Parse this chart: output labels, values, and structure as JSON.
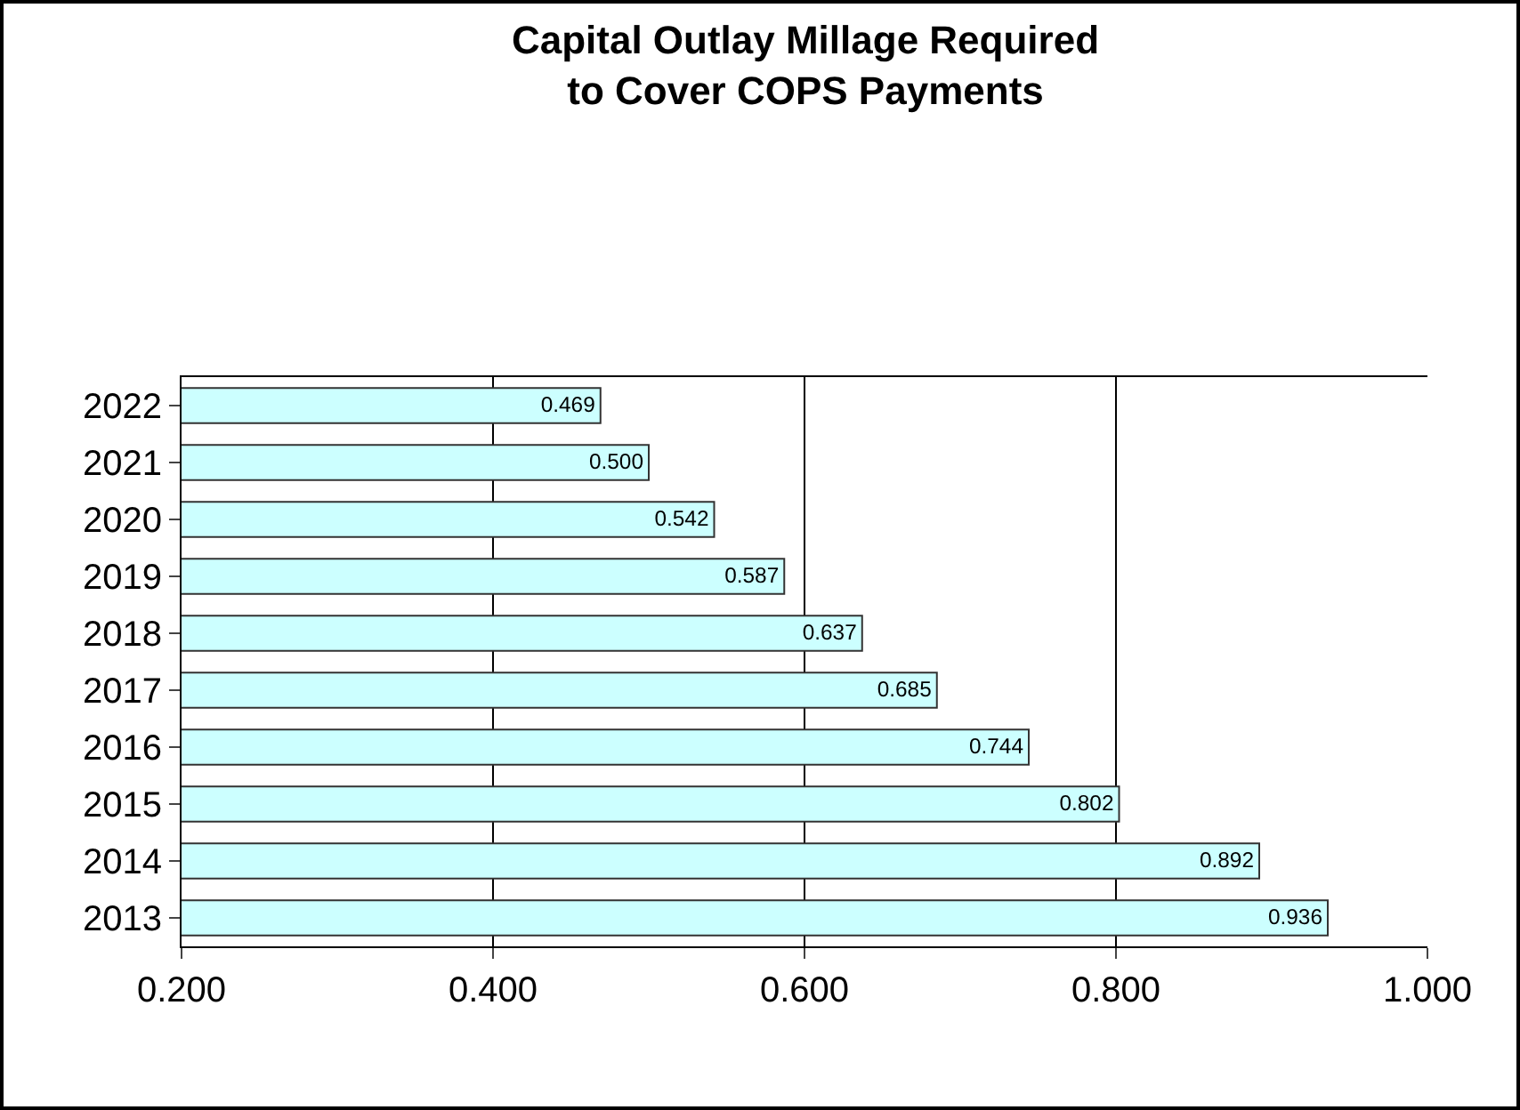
{
  "chart_data": {
    "type": "bar",
    "orientation": "horizontal",
    "title": "Capital Outlay Millage Required\nto Cover COPS Payments",
    "categories": [
      "2022",
      "2021",
      "2020",
      "2019",
      "2018",
      "2017",
      "2016",
      "2015",
      "2014",
      "2013"
    ],
    "values": [
      0.469,
      0.5,
      0.542,
      0.587,
      0.637,
      0.685,
      0.744,
      0.802,
      0.892,
      0.936
    ],
    "value_labels": [
      "0.469",
      "0.500",
      "0.542",
      "0.587",
      "0.637",
      "0.685",
      "0.744",
      "0.802",
      "0.892",
      "0.936"
    ],
    "color": "#ccffff",
    "xlim": [
      0.2,
      1.0
    ],
    "xticks": [
      {
        "value": 0.2,
        "label": "0.200"
      },
      {
        "value": 0.4,
        "label": "0.400"
      },
      {
        "value": 0.6,
        "label": "0.600"
      },
      {
        "value": 0.8,
        "label": "0.800"
      },
      {
        "value": 1.0,
        "label": "1.000"
      }
    ],
    "grid": "x"
  }
}
